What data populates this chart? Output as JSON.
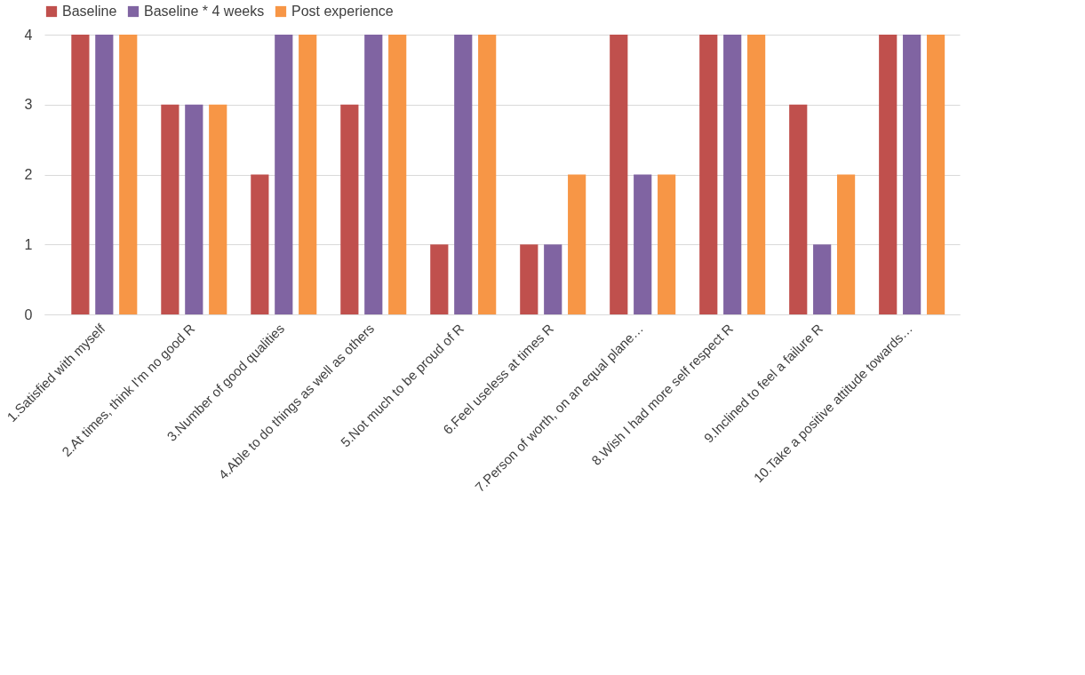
{
  "chart_data": {
    "type": "bar",
    "categories": [
      "1.Satisfied with myself",
      "2.At times, think I'm no good R",
      "3.Number of good qualities",
      "4.Able to do things as well as others",
      "5.Not much to be proud of R",
      "6.Feel useless at times R",
      "7.Person of worth, on an equal plane…",
      "8.Wish I had more self respect R",
      "9.Inclined to feel a failure R",
      "10.Take a positive attitude towards…"
    ],
    "series": [
      {
        "name": "Baseline",
        "color": "#c0504d",
        "values": [
          4,
          3,
          2,
          3,
          1,
          1,
          4,
          4,
          3,
          4
        ]
      },
      {
        "name": "Baseline * 4 weeks",
        "color": "#8064a2",
        "values": [
          4,
          3,
          4,
          4,
          4,
          1,
          2,
          4,
          1,
          4
        ]
      },
      {
        "name": "Post experience",
        "color": "#f79646",
        "values": [
          4,
          3,
          4,
          4,
          4,
          2,
          2,
          4,
          2,
          4
        ]
      }
    ],
    "ylim": [
      0,
      4
    ],
    "yticks": [
      0,
      1,
      2,
      3,
      4
    ],
    "grid": "y",
    "legend": "top left"
  }
}
